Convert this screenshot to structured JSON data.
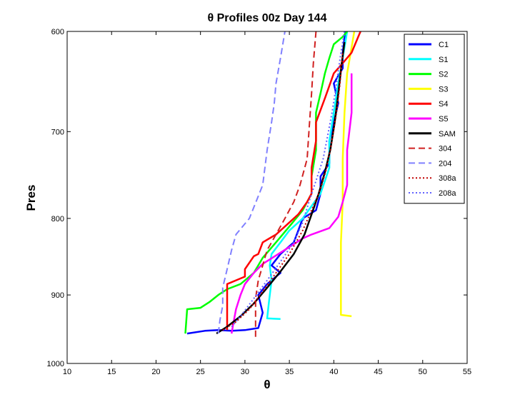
{
  "chart_data": {
    "type": "line",
    "title": "θ Profiles 00z Day 144",
    "xlabel": "θ",
    "ylabel": "Pres",
    "xlim": [
      10,
      55
    ],
    "ylim": [
      600,
      1000
    ],
    "y_reversed": true,
    "y_scale": "log",
    "x_ticks": [
      "10",
      "15",
      "20",
      "25",
      "30",
      "35",
      "40",
      "45",
      "50",
      "55"
    ],
    "y_ticks": [
      "600",
      "700",
      "800",
      "900",
      "1000"
    ],
    "grid": false,
    "legend_position": "top-right",
    "series": [
      {
        "name": "C1",
        "color": "#0000ff",
        "dash": "solid",
        "x": [
          23.5,
          25.5,
          27.0,
          28.5,
          30.0,
          31.5,
          32.0,
          31.5,
          32.5,
          34.0,
          33.0,
          34.0,
          35.5,
          36.0,
          36.5,
          38.0,
          38.5,
          38.5,
          39.5,
          39.5,
          40.0,
          40.5,
          40.0,
          41.0,
          41.0,
          41.3
        ],
        "y": [
          955,
          951,
          950,
          951,
          950,
          947,
          925,
          900,
          885,
          870,
          860,
          845,
          830,
          815,
          800,
          790,
          770,
          750,
          735,
          710,
          690,
          670,
          650,
          635,
          620,
          600
        ]
      },
      {
        "name": "S1",
        "color": "#00ffff",
        "dash": "solid",
        "x": [
          34.0,
          32.5,
          32.7,
          33.0,
          32.8,
          33.0,
          34.0,
          35.0,
          36.5,
          37.5,
          38.5,
          39.0,
          39.5,
          39.5,
          40.0,
          40.5,
          41.0,
          41.5
        ],
        "y": [
          934,
          933,
          910,
          880,
          860,
          845,
          830,
          815,
          800,
          785,
          770,
          755,
          740,
          710,
          680,
          650,
          625,
          600
        ]
      },
      {
        "name": "S2",
        "color": "#00ff00",
        "dash": "solid",
        "x": [
          23.3,
          23.5,
          25.0,
          26.0,
          27.0,
          28.0,
          29.5,
          31.0,
          32.0,
          33.5,
          35.0,
          36.5,
          37.5,
          37.5,
          38.0,
          38.0,
          38.5,
          39.0,
          39.5,
          40.0,
          41.0,
          41.5
        ],
        "y": [
          955,
          920,
          918,
          910,
          900,
          892,
          885,
          870,
          850,
          830,
          810,
          790,
          770,
          750,
          720,
          680,
          660,
          640,
          625,
          612,
          605,
          600
        ]
      },
      {
        "name": "S3",
        "color": "#ffff00",
        "dash": "solid",
        "x": [
          42.0,
          40.8,
          40.8,
          40.8,
          41.0,
          41.0,
          41.2,
          41.5,
          42.0,
          42.3
        ],
        "y": [
          930,
          928,
          880,
          830,
          780,
          730,
          680,
          640,
          615,
          600
        ]
      },
      {
        "name": "S4",
        "color": "#ff0000",
        "dash": "solid",
        "x": [
          28.0,
          28.0,
          29.0,
          30.0,
          30.0,
          31.0,
          31.5,
          32.0,
          33.5,
          34.5,
          36.0,
          37.0,
          37.5,
          37.5,
          38.0,
          38.0,
          39.0,
          40.0,
          41.0,
          42.0,
          42.5,
          43.0
        ],
        "y": [
          950,
          885,
          880,
          875,
          865,
          848,
          845,
          830,
          820,
          810,
          795,
          780,
          770,
          740,
          710,
          690,
          665,
          640,
          630,
          620,
          610,
          600
        ]
      },
      {
        "name": "S5",
        "color": "#ff00ff",
        "dash": "solid",
        "x": [
          28.5,
          28.7,
          29.0,
          29.5,
          30.0,
          31.0,
          32.0,
          33.5,
          35.0,
          36.5,
          37.5,
          39.5,
          40.5,
          41.0,
          41.5,
          41.5,
          42.0,
          42.0
        ],
        "y": [
          955,
          940,
          920,
          900,
          885,
          870,
          858,
          847,
          836,
          825,
          820,
          812,
          798,
          780,
          760,
          720,
          680,
          640
        ]
      },
      {
        "name": "SAM",
        "color": "#000000",
        "dash": "solid",
        "x": [
          26.8,
          28.0,
          29.5,
          31.0,
          32.5,
          34.0,
          35.5,
          36.7,
          37.5,
          38.3,
          39.0,
          39.6,
          40.1,
          40.5,
          40.9,
          41.2
        ],
        "y": [
          955,
          945,
          930,
          912,
          890,
          868,
          845,
          820,
          795,
          770,
          745,
          720,
          690,
          660,
          630,
          610
        ]
      },
      {
        "name": "304",
        "color": "#d02020",
        "dash": "dashed",
        "x": [
          31.2,
          31.2,
          31.5,
          32.0,
          32.5,
          33.5,
          34.5,
          35.5,
          36.2,
          37.0,
          37.2,
          37.5,
          37.7,
          38.0
        ],
        "y": [
          960,
          905,
          880,
          860,
          840,
          820,
          800,
          780,
          760,
          730,
          700,
          660,
          630,
          600
        ]
      },
      {
        "name": "204",
        "color": "#8080ff",
        "dash": "dashed",
        "x": [
          27.0,
          27.2,
          27.5,
          27.5,
          28.0,
          28.5,
          29.0,
          30.5,
          32.0,
          32.5,
          33.0,
          33.3,
          33.5,
          34.0,
          34.5
        ],
        "y": [
          955,
          935,
          915,
          890,
          865,
          840,
          820,
          800,
          760,
          720,
          690,
          670,
          650,
          625,
          600
        ]
      },
      {
        "name": "308a",
        "color": "#c00000",
        "dash": "dotted",
        "x": [
          27.5,
          29.0,
          30.5,
          32.0,
          33.5,
          35.0,
          36.5,
          37.5,
          38.5,
          39.2,
          39.8,
          40.3,
          40.7,
          41.0
        ],
        "y": [
          950,
          938,
          920,
          895,
          870,
          845,
          815,
          790,
          765,
          740,
          710,
          680,
          650,
          620
        ]
      },
      {
        "name": "208a",
        "color": "#6060ff",
        "dash": "dotted",
        "x": [
          28.5,
          29.5,
          31.0,
          32.5,
          34.0,
          35.5,
          36.5,
          37.2,
          38.0,
          38.8,
          39.3,
          39.8,
          40.3,
          40.8,
          41.2
        ],
        "y": [
          945,
          930,
          905,
          880,
          855,
          830,
          805,
          780,
          755,
          730,
          705,
          680,
          650,
          620,
          600
        ]
      }
    ]
  }
}
